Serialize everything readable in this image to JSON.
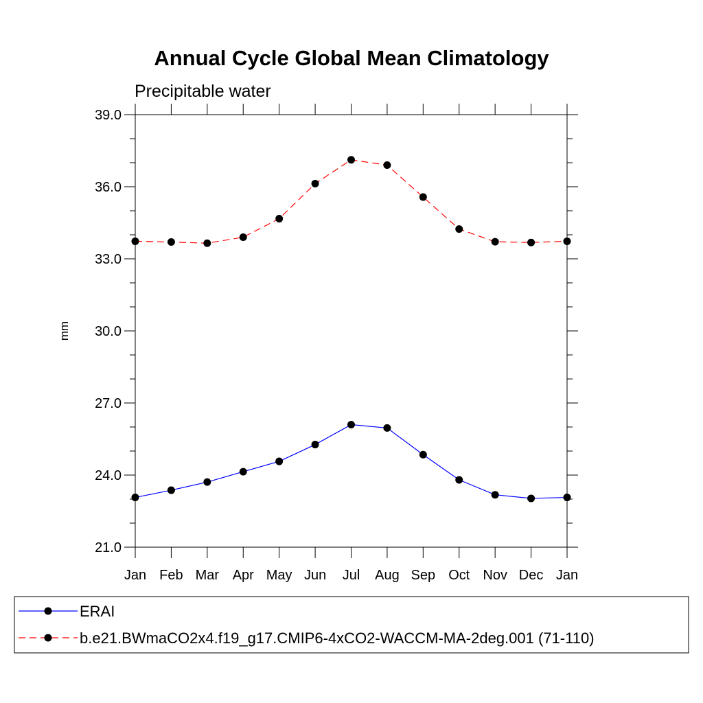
{
  "chart_data": {
    "type": "line",
    "title": "Annual Cycle Global Mean Climatology",
    "subtitle": "Precipitable water",
    "ylabel": "mm",
    "xlabel": "",
    "categories": [
      "Jan",
      "Feb",
      "Mar",
      "Apr",
      "May",
      "Jun",
      "Jul",
      "Aug",
      "Sep",
      "Oct",
      "Nov",
      "Dec",
      "Jan"
    ],
    "ylim": [
      21.0,
      39.0
    ],
    "yticks": [
      "21.0",
      "24.0",
      "27.0",
      "30.0",
      "33.0",
      "36.0",
      "39.0"
    ],
    "grid": false,
    "legend_position": "bottom",
    "series": [
      {
        "name": "ERAI",
        "color": "#0000ff",
        "line_style": "solid",
        "marker": "filled-circle",
        "values": [
          23.07,
          23.37,
          23.71,
          24.14,
          24.57,
          25.27,
          26.1,
          25.96,
          24.85,
          23.8,
          23.18,
          23.03,
          23.07
        ]
      },
      {
        "name": "b.e21.BWmaCO2x4.f19_g17.CMIP6-4xCO2-WACCM-MA-2deg.001 (71-110)",
        "color": "#ff0000",
        "line_style": "dashed",
        "marker": "filled-circle",
        "values": [
          33.73,
          33.7,
          33.65,
          33.9,
          34.67,
          36.13,
          37.12,
          36.9,
          35.57,
          34.24,
          33.71,
          33.68,
          33.73
        ]
      }
    ]
  }
}
